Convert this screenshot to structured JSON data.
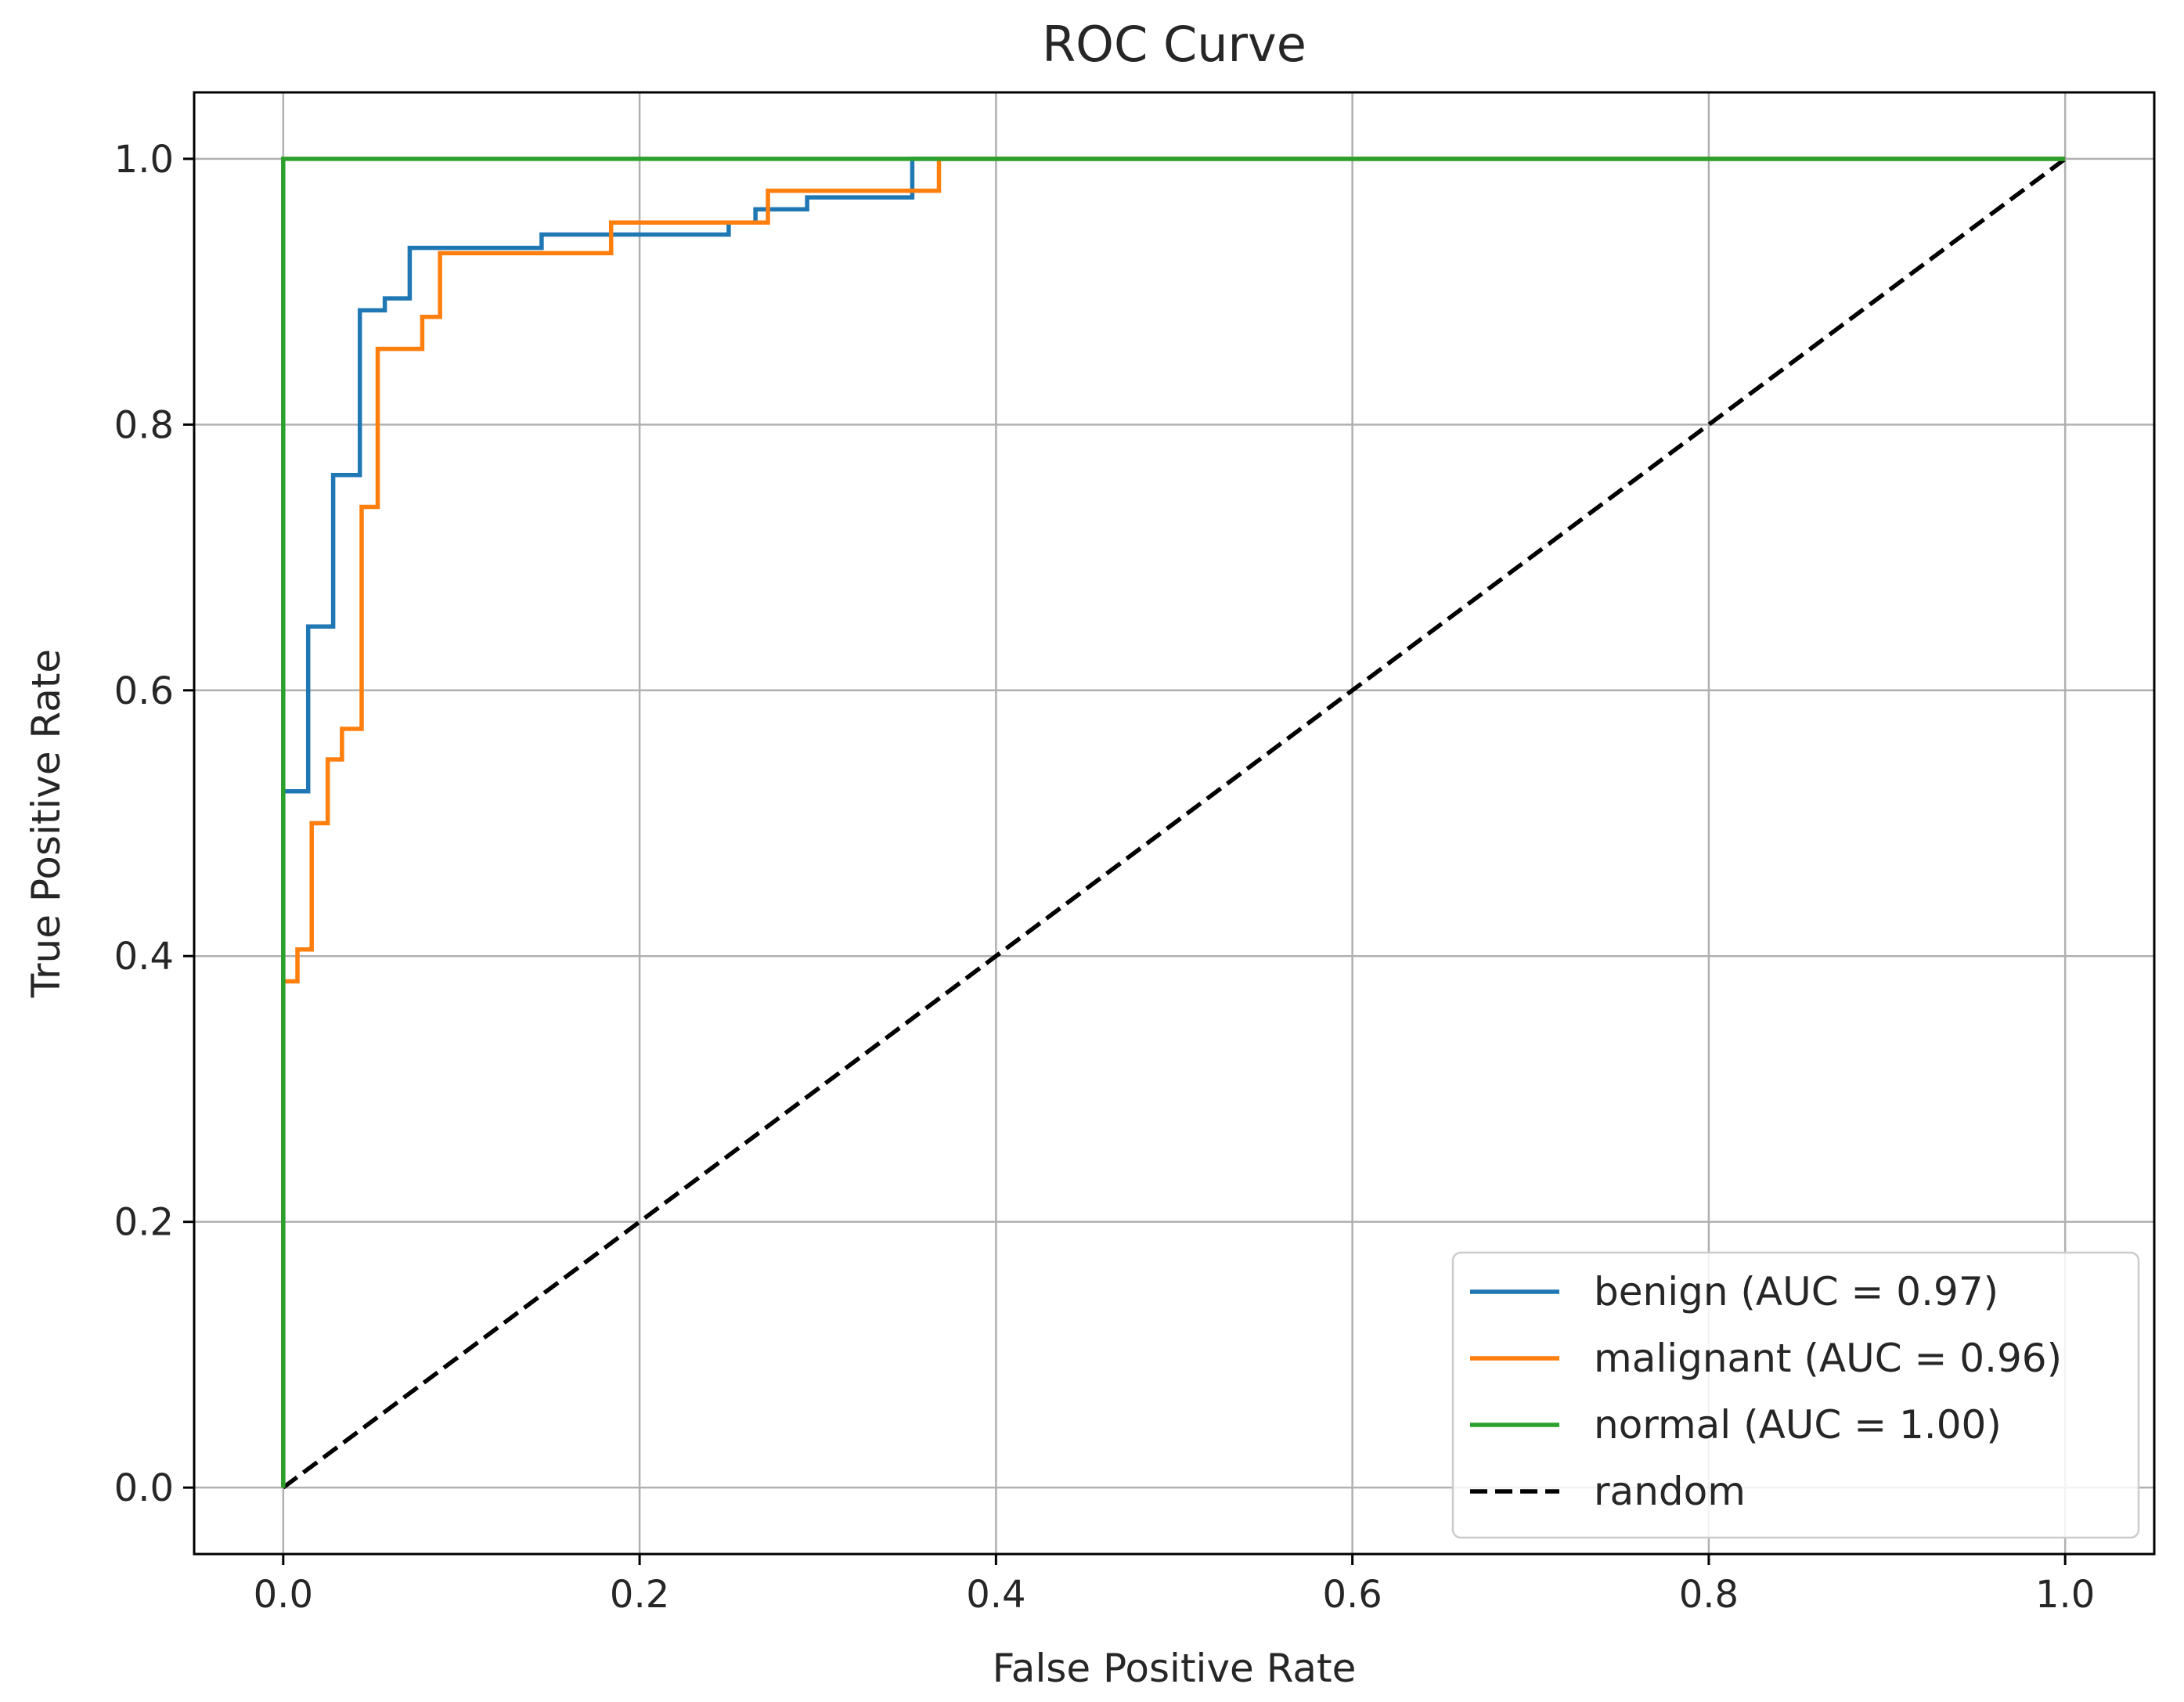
{
  "chart_data": {
    "type": "line",
    "title": "ROC Curve",
    "xlabel": "False Positive Rate",
    "ylabel": "True Positive Rate",
    "xlim": [
      -0.05,
      1.05
    ],
    "ylim": [
      -0.05,
      1.05
    ],
    "grid": true,
    "legend_position": "lower-right",
    "xticks": [
      0.0,
      0.2,
      0.4,
      0.6,
      0.8,
      1.0
    ],
    "yticks": [
      0.0,
      0.2,
      0.4,
      0.6,
      0.8,
      1.0
    ],
    "xtick_labels": [
      "0.0",
      "0.2",
      "0.4",
      "0.6",
      "0.8",
      "1.0"
    ],
    "ytick_labels": [
      "0.0",
      "0.2",
      "0.4",
      "0.6",
      "0.8",
      "1.0"
    ],
    "series": [
      {
        "name": "benign (AUC = 0.97)",
        "color": "#1f77b4",
        "style": "solid",
        "x": [
          0.0,
          0.0,
          0.014,
          0.014,
          0.028,
          0.028,
          0.043,
          0.043,
          0.057,
          0.057,
          0.071,
          0.071,
          0.145,
          0.145,
          0.25,
          0.25,
          0.265,
          0.265,
          0.294,
          0.294,
          0.353,
          0.353,
          1.0
        ],
        "y": [
          0.0,
          0.524,
          0.524,
          0.648,
          0.648,
          0.762,
          0.762,
          0.886,
          0.886,
          0.895,
          0.895,
          0.933,
          0.933,
          0.943,
          0.943,
          0.952,
          0.952,
          0.962,
          0.962,
          0.971,
          0.971,
          1.0,
          1.0
        ]
      },
      {
        "name": "malignant (AUC = 0.96)",
        "color": "#ff7f0e",
        "style": "solid",
        "x": [
          0.0,
          0.0,
          0.008,
          0.008,
          0.016,
          0.016,
          0.025,
          0.025,
          0.033,
          0.033,
          0.044,
          0.044,
          0.053,
          0.053,
          0.078,
          0.078,
          0.088,
          0.088,
          0.184,
          0.184,
          0.272,
          0.272,
          0.368,
          0.368,
          1.0
        ],
        "y": [
          0.0,
          0.381,
          0.381,
          0.405,
          0.405,
          0.5,
          0.5,
          0.548,
          0.548,
          0.571,
          0.571,
          0.738,
          0.738,
          0.857,
          0.857,
          0.881,
          0.881,
          0.929,
          0.929,
          0.952,
          0.952,
          0.976,
          0.976,
          1.0,
          1.0
        ]
      },
      {
        "name": "normal (AUC = 1.00)",
        "color": "#2ca02c",
        "style": "solid",
        "x": [
          0.0,
          0.0,
          1.0
        ],
        "y": [
          0.0,
          1.0,
          1.0
        ]
      },
      {
        "name": "random",
        "color": "#000000",
        "style": "dashed",
        "x": [
          0.0,
          1.0
        ],
        "y": [
          0.0,
          1.0
        ]
      }
    ]
  }
}
